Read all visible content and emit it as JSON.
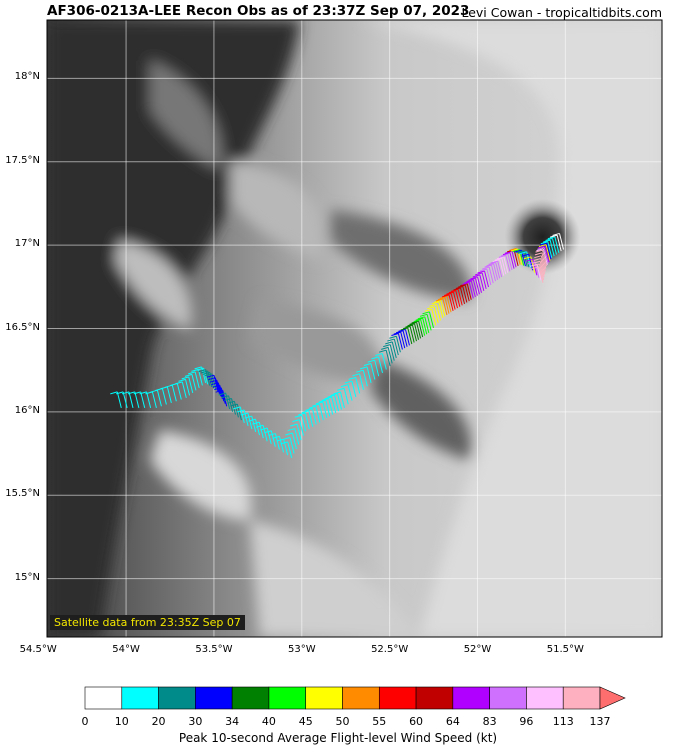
{
  "title": "AF306-0213A-LEE Recon Obs as of 23:37Z Sep 07, 2023",
  "credit": "Levi Cowan - tropicaltidbits.com",
  "satellite_note": "Satellite data from 23:35Z Sep 07",
  "map": {
    "lat_ticks": [
      "18°N",
      "17.5°N",
      "17°N",
      "16.5°N",
      "16°N",
      "15.5°N",
      "15°N"
    ],
    "lon_ticks": [
      "54.5°W",
      "54°W",
      "53.5°W",
      "53°W",
      "52.5°W",
      "52°W",
      "51.5°W"
    ],
    "lat_range": [
      14.65,
      18.35
    ],
    "lon_range": [
      -54.45,
      -50.95
    ],
    "storm_eye": {
      "lon": -51.63,
      "lat": 17.05
    },
    "flight_track": [
      {
        "lon": -54.05,
        "lat": 16.12,
        "kt": 15
      },
      {
        "lon": -53.85,
        "lat": 16.12,
        "kt": 16
      },
      {
        "lon": -53.68,
        "lat": 16.18,
        "kt": 18
      },
      {
        "lon": -53.57,
        "lat": 16.27,
        "kt": 17
      },
      {
        "lon": -53.5,
        "lat": 16.22,
        "kt": 30
      },
      {
        "lon": -53.45,
        "lat": 16.13,
        "kt": 32
      },
      {
        "lon": -53.35,
        "lat": 16.03,
        "kt": 18
      },
      {
        "lon": -53.22,
        "lat": 15.92,
        "kt": 16
      },
      {
        "lon": -53.08,
        "lat": 15.82,
        "kt": 15
      },
      {
        "lon": -53.0,
        "lat": 15.98,
        "kt": 15
      },
      {
        "lon": -52.88,
        "lat": 16.06,
        "kt": 16
      },
      {
        "lon": -52.78,
        "lat": 16.12,
        "kt": 17
      },
      {
        "lon": -52.65,
        "lat": 16.25,
        "kt": 18
      },
      {
        "lon": -52.52,
        "lat": 16.37,
        "kt": 20
      },
      {
        "lon": -52.45,
        "lat": 16.47,
        "kt": 31
      },
      {
        "lon": -52.37,
        "lat": 16.52,
        "kt": 36
      },
      {
        "lon": -52.3,
        "lat": 16.57,
        "kt": 42
      },
      {
        "lon": -52.22,
        "lat": 16.66,
        "kt": 48
      },
      {
        "lon": -52.15,
        "lat": 16.71,
        "kt": 57
      },
      {
        "lon": -52.07,
        "lat": 16.76,
        "kt": 62
      },
      {
        "lon": -52.0,
        "lat": 16.81,
        "kt": 72
      },
      {
        "lon": -51.92,
        "lat": 16.88,
        "kt": 90
      },
      {
        "lon": -51.85,
        "lat": 16.93,
        "kt": 100
      },
      {
        "lon": -51.78,
        "lat": 16.98,
        "kt": 53
      },
      {
        "lon": -51.72,
        "lat": 16.96,
        "kt": 14
      },
      {
        "lon": -51.65,
        "lat": 16.87,
        "kt": 120
      },
      {
        "lon": -51.63,
        "lat": 16.97,
        "kt": 125
      },
      {
        "lon": -51.6,
        "lat": 17.02,
        "kt": 12
      },
      {
        "lon": -51.52,
        "lat": 17.08,
        "kt": 8
      }
    ]
  },
  "colorbar": {
    "label": "Peak 10-second Average Flight-level Wind Speed (kt)",
    "ticks": [
      "0",
      "10",
      "20",
      "30",
      "34",
      "40",
      "45",
      "50",
      "55",
      "60",
      "64",
      "83",
      "96",
      "113",
      "137"
    ],
    "colors": [
      "#ffffff",
      "#00ffff",
      "#008b8b",
      "#0000ff",
      "#008000",
      "#00ff00",
      "#ffff00",
      "#ff8c00",
      "#ff0000",
      "#c00000",
      "#b000ff",
      "#d070ff",
      "#ffc0ff",
      "#ffb0c0"
    ],
    "extend_color": "#ff6e6e"
  }
}
